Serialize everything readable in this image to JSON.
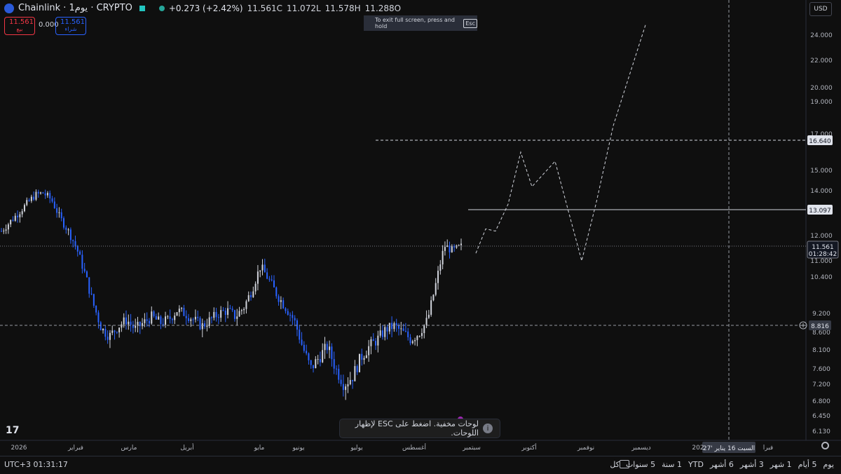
{
  "header": {
    "symbol": "Chainlink · 1يوم · CRYPTO",
    "change": "+0.273 (+2.42%)",
    "close_label": "11.561C",
    "low_label": "11.072L",
    "high_label": "11.578H",
    "open_label": "11.288O"
  },
  "trade": {
    "sell_value": "11.561",
    "sell_label": "بيع",
    "spread": "0.000",
    "buy_value": "11.561",
    "buy_label": "شراء"
  },
  "fullscreen_tip": {
    "text": "To exit full screen, press and hold",
    "key": "Esc"
  },
  "currency": "USD",
  "price_scale": {
    "ticks": [
      "24.000",
      "22.000",
      "20.000",
      "19.000",
      "17.000",
      "15.000",
      "14.000",
      "12.000",
      "11.000",
      "10.400",
      "9.200",
      "8.600",
      "8.100",
      "7.600",
      "7.200",
      "6.800",
      "6.450",
      "6.130"
    ],
    "labels": {
      "alert_line": "16.640",
      "horizontal_line": "13.097",
      "last_price": "11.561",
      "countdown": "01:28:42",
      "crosshair_price": "8.816"
    }
  },
  "time_axis": {
    "labels": [
      "2026",
      "فبراير",
      "مارس",
      "أبريل",
      "مايو",
      "يونيو",
      "يوليو",
      "أغسطس",
      "سبتمبر",
      "أكتوبر",
      "نوفمبر",
      "ديسمبر",
      "فبرا"
    ],
    "partial_label": "202",
    "crosshair_date": "السبت 16 يناير '27"
  },
  "toast": {
    "text": "لوحات مخفية. اضغط على ESC لإظهار اللوحات."
  },
  "bottom": {
    "timezone": "UTC+3 01:31:17",
    "ranges": [
      "يوم",
      "5 أيام",
      "1 شهر",
      "3 أشهر",
      "6 أشهر",
      "YTD",
      "1 سنة",
      "5 سنوات",
      "كل"
    ]
  },
  "colors": {
    "up": "#d1d4dc",
    "down": "#2962ff",
    "background": "#0f0f0f",
    "sell": "#f23645",
    "buy": "#2962ff"
  },
  "chart_data": {
    "type": "candlestick",
    "symbol": "Chainlink",
    "interval": "1D",
    "y_ticks": [
      24,
      22,
      20,
      19,
      17,
      15,
      14,
      12,
      11,
      10.4,
      9.2,
      8.6,
      8.1,
      7.6,
      7.2,
      6.8,
      6.45,
      6.13
    ],
    "close_path": [
      12.2,
      12.6,
      13.0,
      13.4,
      13.8,
      13.9,
      13.6,
      12.8,
      12.2,
      11.5,
      10.5,
      9.5,
      8.7,
      8.5,
      8.8,
      9.0,
      8.7,
      8.9,
      9.1,
      8.9,
      9.0,
      9.3,
      9.2,
      9.0,
      8.8,
      9.0,
      9.2,
      9.3,
      9.1,
      9.4,
      10.0,
      10.8,
      10.3,
      9.8,
      9.4,
      9.0,
      8.2,
      7.6,
      7.9,
      8.2,
      7.6,
      7.2,
      7.4,
      7.9,
      8.2,
      8.4,
      8.7,
      8.8,
      8.6,
      8.4,
      8.6,
      9.0,
      10.2,
      11.6,
      11.4,
      11.56
    ],
    "last_close": 11.561,
    "horizontal_levels": [
      16.64,
      13.097,
      8.816
    ],
    "projection_path": [
      11.3,
      12.3,
      12.2,
      13.4,
      16.0,
      14.2,
      15.5,
      11.0,
      13.5,
      17.5,
      24.8
    ],
    "x_labels": [
      "2026",
      "فبراير",
      "مارس",
      "أبريل",
      "مايو",
      "يونيو",
      "يوليو",
      "أغسطس",
      "سبتمبر",
      "أكتوبر",
      "نوفمبر",
      "ديسمبر"
    ]
  }
}
